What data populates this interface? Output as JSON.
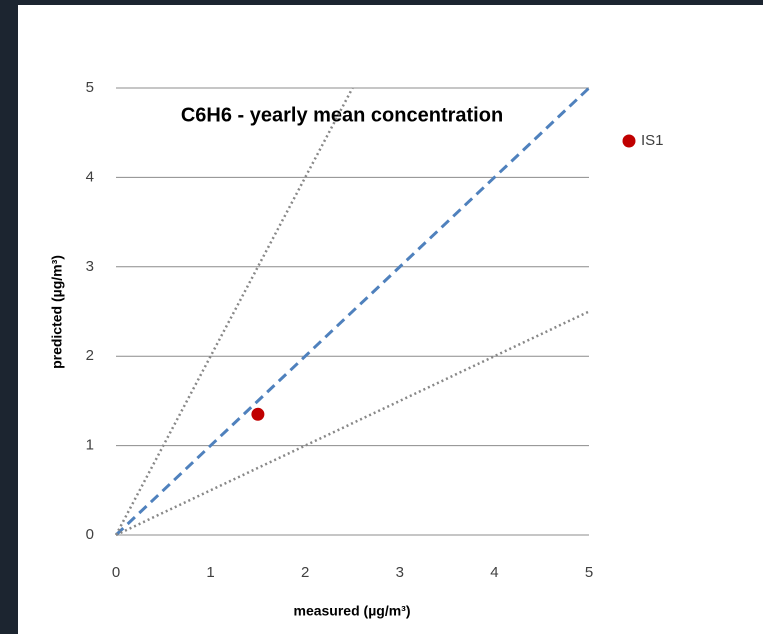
{
  "chart_data": {
    "type": "scatter",
    "title": "C6H6 - yearly mean concentration",
    "x_label": "measured (µg/m³)",
    "y_label": "predicted (µg/m³)",
    "series": [
      {
        "name": "IS1",
        "color": "#c00000",
        "x": [
          1.5
        ],
        "values": [
          1.35
        ]
      }
    ],
    "lines": [
      {
        "x": [
          0,
          5
        ],
        "values": [
          0,
          5
        ],
        "color": "#4f81bd",
        "style": "dashed"
      },
      {
        "x": [
          0,
          2.5
        ],
        "values": [
          0,
          5
        ],
        "color": "#888888",
        "style": "dotted"
      },
      {
        "x": [
          0,
          5
        ],
        "values": [
          0,
          2.5
        ],
        "color": "#888888",
        "style": "dotted"
      }
    ],
    "xlim": [
      0,
      5
    ],
    "ylim": [
      0,
      5
    ],
    "xticks": [
      0,
      1,
      2,
      3,
      4,
      5
    ],
    "yticks": [
      0,
      1,
      2,
      3,
      4,
      5
    ],
    "grid": true,
    "legend": "right"
  }
}
